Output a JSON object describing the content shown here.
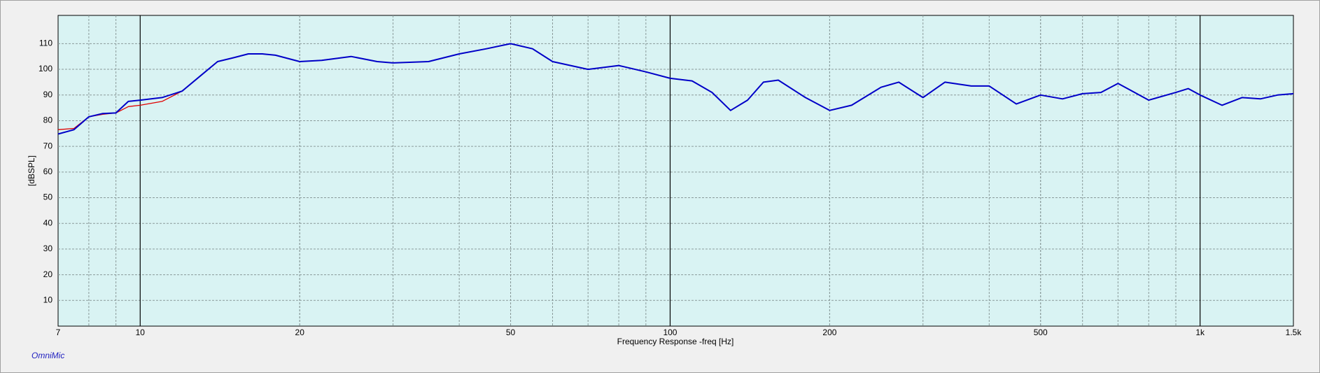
{
  "chart_data": {
    "type": "line",
    "x_label": "Frequency Response -freq [Hz]",
    "y_label": "[dBSPL]",
    "watermark": "OmniMic",
    "x": [
      7,
      7.5,
      8,
      8.5,
      9,
      9.5,
      10,
      11,
      12,
      13,
      14,
      15,
      16,
      17,
      18,
      20,
      22,
      25,
      28,
      30,
      35,
      40,
      45,
      50,
      55,
      60,
      70,
      80,
      90,
      100,
      110,
      120,
      130,
      140,
      150,
      160,
      180,
      200,
      220,
      250,
      270,
      300,
      330,
      370,
      400,
      450,
      500,
      550,
      600,
      650,
      700,
      800,
      900,
      950,
      1000,
      1100,
      1200,
      1300,
      1400,
      1500
    ],
    "series": [
      {
        "color": "#e00000",
        "values": [
          76.5,
          77,
          81.5,
          82.5,
          83,
          85.5,
          86,
          87.5,
          91.5,
          97.5,
          103,
          104.5,
          106,
          106,
          105.5,
          103,
          103.5,
          105,
          103,
          102.5,
          103,
          106,
          108,
          110,
          108,
          103,
          100,
          101.5,
          99,
          96.5,
          95.5,
          91,
          84,
          88,
          95,
          95.8,
          89,
          84,
          86,
          93,
          95,
          89,
          95,
          93.5,
          93.5,
          86.5,
          90,
          88.5,
          90.5,
          91,
          94.5,
          88,
          91,
          92.5,
          90,
          86,
          89,
          88.5,
          90,
          90.5
        ]
      },
      {
        "color": "#0000c8",
        "values": [
          74.8,
          76.5,
          81.5,
          82.8,
          83,
          87.5,
          88,
          89,
          91.5,
          97.5,
          103,
          104.5,
          106,
          106,
          105.5,
          103,
          103.5,
          105,
          103,
          102.5,
          103,
          106,
          108,
          110,
          108,
          103,
          100,
          101.5,
          99,
          96.5,
          95.5,
          91,
          84,
          88,
          95,
          95.8,
          89,
          84,
          86,
          93,
          95,
          89,
          95,
          93.5,
          93.5,
          86.5,
          90,
          88.5,
          90.5,
          91,
          94.5,
          88,
          91,
          92.5,
          90,
          86,
          89,
          88.5,
          90,
          90.5
        ]
      }
    ],
    "xscale": "log",
    "xlim": [
      7,
      1500
    ],
    "xticks": [
      7,
      10,
      20,
      50,
      100,
      200,
      500,
      {
        "value": 1000,
        "label": "1k"
      },
      {
        "value": 1500,
        "label": "1.5k"
      }
    ],
    "ylim": [
      0,
      121
    ],
    "yticks": [
      10,
      20,
      30,
      40,
      50,
      60,
      70,
      80,
      90,
      100,
      110
    ],
    "grid": true,
    "plot_color": "#d9f3f3"
  }
}
